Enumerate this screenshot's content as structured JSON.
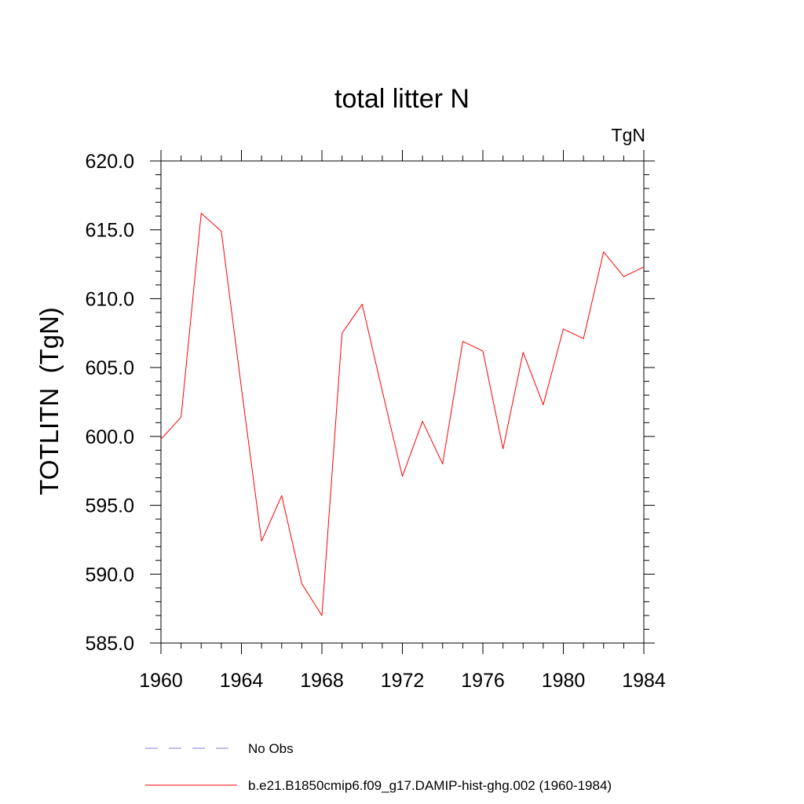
{
  "chart_data": {
    "type": "line",
    "title": "total litter N",
    "units_label": "TgN",
    "ylabel": "TOTLITN  (TgN)",
    "xlabel": "",
    "xlim": [
      1960,
      1984
    ],
    "ylim": [
      585,
      620
    ],
    "x_ticks": [
      1960,
      1964,
      1968,
      1972,
      1976,
      1980,
      1984
    ],
    "x_tick_labels": [
      "1960",
      "1964",
      "1968",
      "1972",
      "1976",
      "1980",
      "1984"
    ],
    "y_ticks": [
      585,
      590,
      595,
      600,
      605,
      610,
      615,
      620
    ],
    "y_tick_labels": [
      "585.0",
      "590.0",
      "595.0",
      "600.0",
      "605.0",
      "610.0",
      "615.0",
      "620.0"
    ],
    "grid": false,
    "legend_placement": "bottom",
    "series": [
      {
        "name": "b.e21.B1850cmip6.f09_g17.DAMIP-hist-ghg.002 (1960-1984)",
        "color": "#ff0000",
        "style": "solid",
        "x": [
          1960,
          1961,
          1962,
          1963,
          1964,
          1965,
          1966,
          1967,
          1968,
          1969,
          1970,
          1971,
          1972,
          1973,
          1974,
          1975,
          1976,
          1977,
          1978,
          1979,
          1980,
          1981,
          1982,
          1983,
          1984
        ],
        "y": [
          599.8,
          601.4,
          616.2,
          614.9,
          603.5,
          592.4,
          595.7,
          589.3,
          587.0,
          607.5,
          609.6,
          603.3,
          597.1,
          601.1,
          598.0,
          606.9,
          606.2,
          599.1,
          606.1,
          602.3,
          607.8,
          607.1,
          613.4,
          611.6,
          612.3
        ]
      }
    ],
    "legend": [
      {
        "label": "No Obs",
        "color": "#7b7bd6",
        "style": "dashed"
      },
      {
        "label": "b.e21.B1850cmip6.f09_g17.DAMIP-hist-ghg.002 (1960-1984)",
        "color": "#ff0000",
        "style": "solid"
      }
    ]
  }
}
